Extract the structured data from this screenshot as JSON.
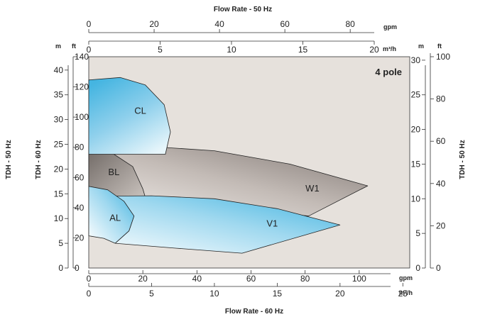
{
  "chart_data": {
    "type": "area",
    "title": "",
    "annotation": "4 pole",
    "axes": {
      "top_title": "Flow Rate - 50 Hz",
      "bottom_title": "Flow Rate - 60 Hz",
      "left_title_outer": "TDH - 50 Hz",
      "left_title_inner": "TDH - 60 Hz",
      "right_title": "TDH - 50 Hz",
      "top_gpm": {
        "unit": "gpm",
        "range": [
          0,
          88
        ],
        "ticks": [
          "0",
          "20",
          "40",
          "60",
          "80"
        ],
        "values": [
          0,
          20,
          40,
          60,
          80
        ]
      },
      "top_m3h": {
        "unit": "m³/h",
        "range": [
          0,
          20
        ],
        "ticks": [
          "0",
          "5",
          "10",
          "15",
          "20"
        ],
        "values": [
          0,
          5,
          10,
          15,
          20
        ]
      },
      "bottom_gpm": {
        "unit": "gpm",
        "range": [
          0,
          120
        ],
        "ticks": [
          "0",
          "20",
          "40",
          "60",
          "80",
          "100"
        ],
        "values": [
          0,
          20,
          40,
          60,
          80,
          100
        ]
      },
      "bottom_m3h": {
        "unit": "m³/h",
        "range": [
          0,
          26
        ],
        "ticks": [
          "0",
          "5",
          "10",
          "15",
          "20",
          "25"
        ],
        "values": [
          0,
          5,
          10,
          15,
          20,
          25
        ]
      },
      "left_m": {
        "unit": "m",
        "range": [
          0,
          42.7
        ],
        "ticks": [
          "0",
          "5",
          "10",
          "15",
          "20",
          "25",
          "30",
          "35",
          "40"
        ],
        "values": [
          0,
          5,
          10,
          15,
          20,
          25,
          30,
          35,
          40
        ]
      },
      "left_ft": {
        "unit": "ft",
        "range": [
          0,
          140
        ],
        "ticks": [
          "0",
          "20",
          "40",
          "60",
          "80",
          "100",
          "120",
          "140"
        ],
        "values": [
          0,
          20,
          40,
          60,
          80,
          100,
          120,
          140
        ]
      },
      "right_m": {
        "unit": "m",
        "range": [
          0,
          30.5
        ],
        "ticks": [
          "0",
          "5",
          "10",
          "15",
          "20",
          "25",
          "30"
        ],
        "values": [
          0,
          5,
          10,
          15,
          20,
          25,
          30
        ]
      },
      "right_ft": {
        "unit": "ft",
        "range": [
          0,
          100
        ],
        "ticks": [
          "0",
          "20",
          "40",
          "60",
          "80",
          "100"
        ],
        "values": [
          0,
          20,
          40,
          60,
          80,
          100
        ]
      }
    },
    "series": [
      {
        "name": "CL",
        "x_unit": "m³/h (60 Hz)",
        "y_unit": "m (60 Hz)",
        "color": "#5bbfe4",
        "points": [
          [
            0,
            38
          ],
          [
            2.5,
            38.5
          ],
          [
            4.5,
            37
          ],
          [
            6,
            33
          ],
          [
            6.5,
            27.5
          ],
          [
            6.1,
            23
          ],
          [
            0,
            23
          ]
        ]
      },
      {
        "name": "BL",
        "x_unit": "m³/h (60 Hz)",
        "y_unit": "m (60 Hz)",
        "color": "#8d8480",
        "points": [
          [
            0,
            24.5
          ],
          [
            2,
            23
          ],
          [
            3.5,
            20.5
          ],
          [
            4.3,
            16
          ],
          [
            4.5,
            14.3
          ],
          [
            0,
            14.3
          ]
        ]
      },
      {
        "name": "W1",
        "x_unit": "m³/h (60 Hz)",
        "y_unit": "m (60 Hz)",
        "color": "#8d8480",
        "points": [
          [
            0,
            24.5
          ],
          [
            4,
            24.7
          ],
          [
            10,
            23.7
          ],
          [
            16,
            21
          ],
          [
            22.2,
            16.6
          ],
          [
            17.5,
            10.5
          ],
          [
            4.5,
            14.3
          ],
          [
            0,
            14.3
          ]
        ]
      },
      {
        "name": "AL",
        "x_unit": "m³/h (60 Hz)",
        "y_unit": "m (60 Hz)",
        "color": "#5bbfe4",
        "points": [
          [
            0,
            16.5
          ],
          [
            1.5,
            15.8
          ],
          [
            2.8,
            13.5
          ],
          [
            3.6,
            10.5
          ],
          [
            3.2,
            7.5
          ],
          [
            2.1,
            5
          ],
          [
            1.2,
            6
          ],
          [
            0,
            6.5
          ]
        ]
      },
      {
        "name": "V1",
        "x_unit": "m³/h (60 Hz)",
        "y_unit": "m (60 Hz)",
        "color": "#5bbfe4",
        "points": [
          [
            0,
            14.5
          ],
          [
            5,
            14.6
          ],
          [
            10,
            14
          ],
          [
            15,
            12
          ],
          [
            20,
            8.7
          ],
          [
            12.2,
            3
          ],
          [
            7,
            4
          ],
          [
            2.1,
            5
          ],
          [
            3.2,
            7.5
          ],
          [
            3.6,
            10.5
          ],
          [
            2.8,
            13.5
          ],
          [
            0,
            14.5
          ]
        ]
      }
    ],
    "colors": {
      "plot_background": "#e6e1dc",
      "blue": "#5bbfe4",
      "gray": "#8d8480"
    }
  }
}
